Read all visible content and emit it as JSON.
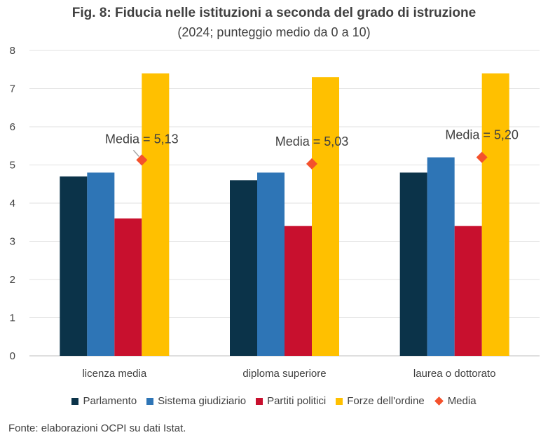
{
  "title": "Fig. 8: Fiducia nelle istituzioni a seconda del grado di istruzione",
  "subtitle": "(2024; punteggio medio da 0 a 10)",
  "source": "Fonte: elaborazioni OCPI su dati Istat.",
  "colors": {
    "Parlamento": "#0b3349",
    "Sistema giudiziario": "#2e75b6",
    "Partiti politici": "#c8102e",
    "Forze dell'ordine": "#ffc000",
    "Media": "#f4512c"
  },
  "chart_data": {
    "type": "bar",
    "categories": [
      "licenza media",
      "diploma superiore",
      "laurea o dottorato"
    ],
    "series": [
      {
        "name": "Parlamento",
        "values": [
          4.7,
          4.6,
          4.8
        ]
      },
      {
        "name": "Sistema giudiziario",
        "values": [
          4.8,
          4.8,
          5.2
        ]
      },
      {
        "name": "Partiti politici",
        "values": [
          3.6,
          3.4,
          3.4
        ]
      },
      {
        "name": "Forze dell'ordine",
        "values": [
          7.4,
          7.3,
          7.4
        ]
      }
    ],
    "overlay": {
      "name": "Media",
      "marker": "diamond",
      "values": [
        5.13,
        5.03,
        5.2
      ],
      "labels": [
        "Media = 5,13",
        "Media = 5,03",
        "Media = 5,20"
      ]
    },
    "ylim": [
      0,
      8
    ],
    "yticks": [
      "0",
      "1",
      "2",
      "3",
      "4",
      "5",
      "6",
      "7",
      "8"
    ],
    "grid": true,
    "legend_position": "bottom"
  }
}
